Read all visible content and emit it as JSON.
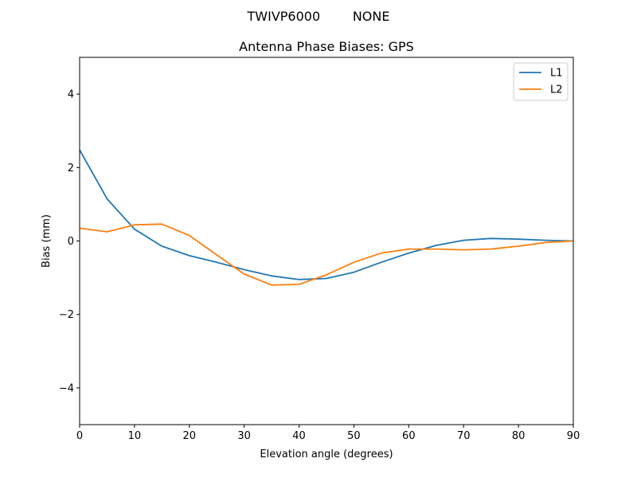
{
  "suptitle": "TWIVP6000        NONE",
  "chart_data": {
    "type": "line",
    "title": "Antenna Phase Biases: GPS",
    "xlabel": "Elevation angle (degrees)",
    "ylabel": "Bias (mm)",
    "xlim": [
      0,
      90
    ],
    "ylim": [
      -5,
      5
    ],
    "xticks": [
      0,
      10,
      20,
      30,
      40,
      50,
      60,
      70,
      80,
      90
    ],
    "yticks": [
      -4,
      -2,
      0,
      2,
      4
    ],
    "ytick_labels": [
      "−4",
      "−2",
      "0",
      "2",
      "4"
    ],
    "grid": false,
    "legend_position": "top-right",
    "x": [
      0,
      5,
      10,
      15,
      20,
      25,
      30,
      35,
      40,
      45,
      50,
      55,
      60,
      65,
      70,
      75,
      80,
      85,
      90
    ],
    "series": [
      {
        "name": "L1",
        "color": "#1f77b4",
        "values": [
          2.48,
          1.15,
          0.32,
          -0.14,
          -0.4,
          -0.58,
          -0.78,
          -0.95,
          -1.05,
          -1.02,
          -0.85,
          -0.58,
          -0.33,
          -0.12,
          0.02,
          0.07,
          0.05,
          0.02,
          0.0
        ]
      },
      {
        "name": "L2",
        "color": "#ff7f0e",
        "values": [
          0.35,
          0.25,
          0.44,
          0.46,
          0.15,
          -0.38,
          -0.9,
          -1.2,
          -1.18,
          -0.92,
          -0.58,
          -0.33,
          -0.22,
          -0.22,
          -0.24,
          -0.22,
          -0.14,
          -0.04,
          0.0
        ]
      }
    ]
  }
}
